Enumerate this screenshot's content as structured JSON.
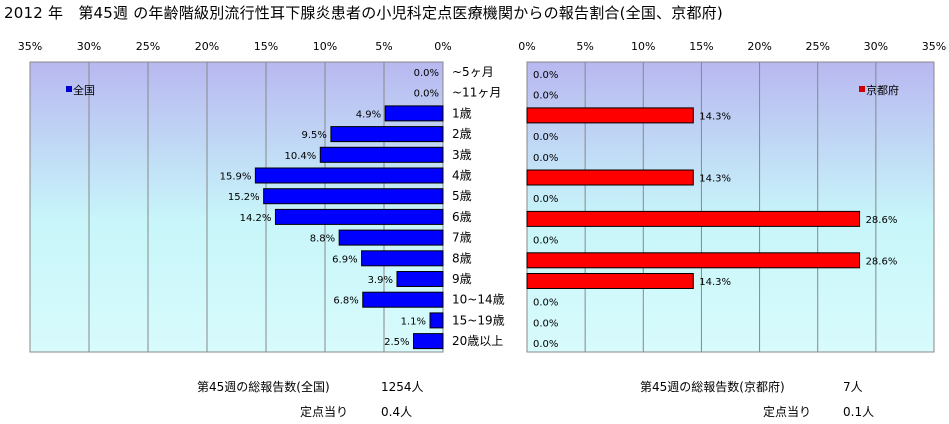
{
  "title": "2012 年　第45週 の年齢階級別流行性耳下腺炎患者の小児科定点医療機関からの報告割合(全国、京都府)",
  "chart_data": [
    {
      "type": "bar",
      "orientation": "horizontal",
      "direction": "right-to-left",
      "legend": "全国",
      "legend_position": "top-left",
      "legend_color": "#0000CC",
      "bar_color": "#0000FF",
      "xlim": [
        0,
        35
      ],
      "x_ticks": [
        "35%",
        "30%",
        "25%",
        "20%",
        "15%",
        "10%",
        "5%",
        "0%"
      ],
      "grid": true,
      "categories": [
        "~5ヶ月",
        "~11ヶ月",
        "1歳",
        "2歳",
        "3歳",
        "4歳",
        "5歳",
        "6歳",
        "7歳",
        "8歳",
        "9歳",
        "10~14歳",
        "15~19歳",
        "20歳以上"
      ],
      "values": [
        0.0,
        0.0,
        4.9,
        9.5,
        10.4,
        15.9,
        15.2,
        14.2,
        8.8,
        6.9,
        3.9,
        6.8,
        1.1,
        2.5
      ],
      "labels": [
        "0.0%",
        "0.0%",
        "4.9%",
        "9.5%",
        "10.4%",
        "15.9%",
        "15.2%",
        "14.2%",
        "8.8%",
        "6.9%",
        "3.9%",
        "6.8%",
        "1.1%",
        "2.5%"
      ]
    },
    {
      "type": "bar",
      "orientation": "horizontal",
      "direction": "left-to-right",
      "legend": "京都府",
      "legend_position": "top-right",
      "legend_color": "#CC0000",
      "bar_color": "#FF0000",
      "xlim": [
        0,
        35
      ],
      "x_ticks": [
        "0%",
        "5%",
        "10%",
        "15%",
        "20%",
        "25%",
        "30%",
        "35%"
      ],
      "grid": true,
      "categories": [
        "~5ヶ月",
        "~11ヶ月",
        "1歳",
        "2歳",
        "3歳",
        "4歳",
        "5歳",
        "6歳",
        "7歳",
        "8歳",
        "9歳",
        "10~14歳",
        "15~19歳",
        "20歳以上"
      ],
      "values": [
        0.0,
        0.0,
        14.3,
        0.0,
        0.0,
        14.3,
        0.0,
        28.6,
        0.0,
        28.6,
        14.3,
        0.0,
        0.0,
        0.0
      ],
      "labels": [
        "0.0%",
        "0.0%",
        "14.3%",
        "0.0%",
        "0.0%",
        "14.3%",
        "0.0%",
        "28.6%",
        "0.0%",
        "28.6%",
        "14.3%",
        "0.0%",
        "0.0%",
        "0.0%"
      ]
    }
  ],
  "category_labels": [
    "~5ヶ月",
    "~11ヶ月",
    "1歳",
    "2歳",
    "3歳",
    "4歳",
    "5歳",
    "6歳",
    "7歳",
    "8歳",
    "9歳",
    "10~14歳",
    "15~19歳",
    "20歳以上"
  ],
  "stats": {
    "national_total_label": "第45週の総報告数(全国)",
    "national_total_value": "1254人",
    "national_per_label": "定点当り",
    "national_per_value": "0.4人",
    "kyoto_total_label": "第45週の総報告数(京都府)",
    "kyoto_total_value": "7人",
    "kyoto_per_label": "定点当り",
    "kyoto_per_value": "0.1人"
  }
}
